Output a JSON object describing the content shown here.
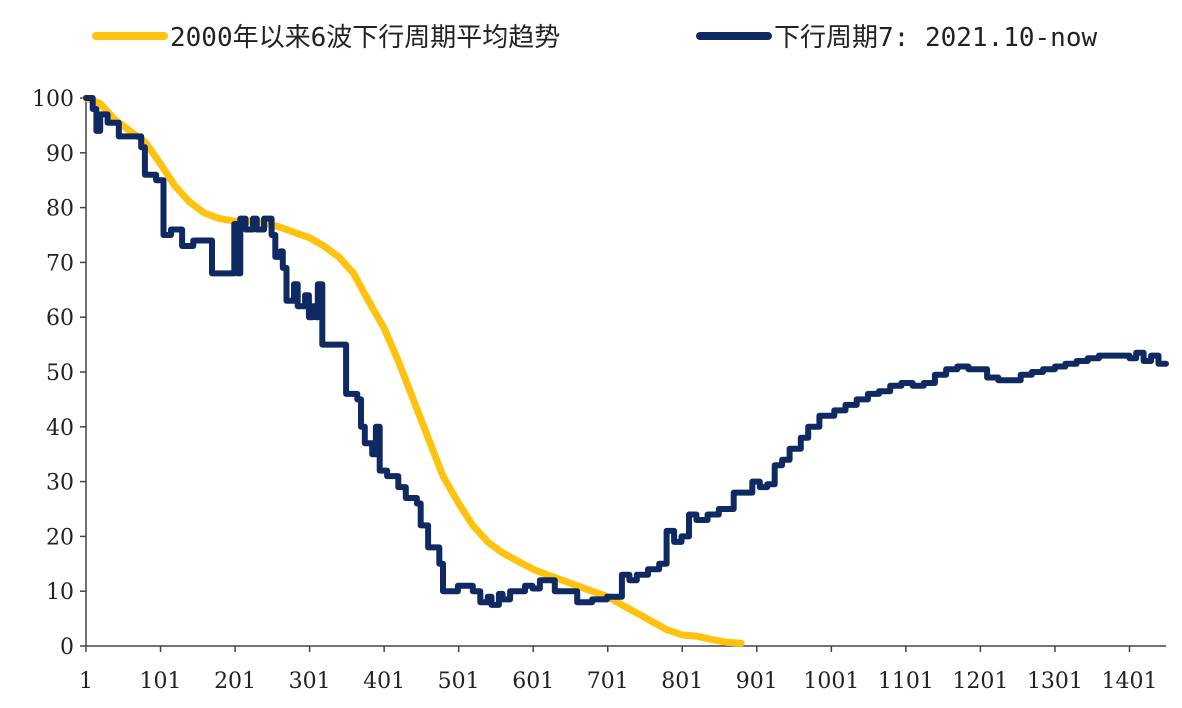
{
  "chart_data": {
    "type": "line",
    "title": "",
    "xlabel": "",
    "ylabel": "",
    "xlim": [
      1,
      1450
    ],
    "ylim": [
      0,
      100
    ],
    "x_ticks": [
      1,
      101,
      201,
      301,
      401,
      501,
      601,
      701,
      801,
      901,
      1001,
      1101,
      1201,
      1301,
      1401
    ],
    "x_tick_labels": [
      "1",
      "101",
      "201",
      "301",
      "401",
      "501",
      "601",
      "701",
      "801",
      "901",
      "1001",
      "1101",
      "1201",
      "1301",
      "1401"
    ],
    "y_ticks": [
      0,
      10,
      20,
      30,
      40,
      50,
      60,
      70,
      80,
      90,
      100
    ],
    "y_tick_labels": [
      "0",
      "10",
      "20",
      "30",
      "40",
      "50",
      "60",
      "70",
      "80",
      "90",
      "100"
    ],
    "grid": false,
    "legend_position": "top",
    "series": [
      {
        "name": "2000年以来6波下行周期平均趋势",
        "color": "#FFC20E",
        "step": false,
        "points": [
          [
            1,
            100
          ],
          [
            20,
            99
          ],
          [
            40,
            96
          ],
          [
            60,
            94
          ],
          [
            80,
            92
          ],
          [
            101,
            88
          ],
          [
            120,
            84
          ],
          [
            140,
            81
          ],
          [
            160,
            79
          ],
          [
            180,
            78
          ],
          [
            201,
            77.5
          ],
          [
            230,
            77.5
          ],
          [
            260,
            76.5
          ],
          [
            280,
            75.5
          ],
          [
            301,
            74.5
          ],
          [
            320,
            73
          ],
          [
            340,
            71
          ],
          [
            360,
            68
          ],
          [
            380,
            63
          ],
          [
            401,
            58
          ],
          [
            420,
            52
          ],
          [
            440,
            45
          ],
          [
            460,
            38
          ],
          [
            480,
            31
          ],
          [
            501,
            26
          ],
          [
            520,
            22
          ],
          [
            540,
            19
          ],
          [
            560,
            17
          ],
          [
            580,
            15.5
          ],
          [
            601,
            14
          ],
          [
            620,
            13
          ],
          [
            640,
            12
          ],
          [
            660,
            11
          ],
          [
            680,
            10
          ],
          [
            701,
            9
          ],
          [
            720,
            7.5
          ],
          [
            740,
            6
          ],
          [
            760,
            4.5
          ],
          [
            780,
            3
          ],
          [
            801,
            2
          ],
          [
            820,
            1.8
          ],
          [
            840,
            1.2
          ],
          [
            860,
            0.7
          ],
          [
            880,
            0.5
          ]
        ]
      },
      {
        "name": "下行周期7: 2021.10-now",
        "color": "#0F2A63",
        "step": true,
        "points": [
          [
            1,
            100
          ],
          [
            10,
            98
          ],
          [
            15,
            94
          ],
          [
            20,
            97
          ],
          [
            30,
            95.5
          ],
          [
            45,
            93
          ],
          [
            60,
            93
          ],
          [
            75,
            91
          ],
          [
            80,
            86
          ],
          [
            95,
            85
          ],
          [
            101,
            85
          ],
          [
            105,
            75
          ],
          [
            115,
            76
          ],
          [
            125,
            76
          ],
          [
            130,
            73
          ],
          [
            145,
            74
          ],
          [
            160,
            74
          ],
          [
            170,
            68
          ],
          [
            195,
            68
          ],
          [
            200,
            77
          ],
          [
            205,
            68
          ],
          [
            208,
            78
          ],
          [
            215,
            76
          ],
          [
            225,
            78
          ],
          [
            230,
            76
          ],
          [
            240,
            78
          ],
          [
            250,
            75
          ],
          [
            255,
            71
          ],
          [
            262,
            72
          ],
          [
            265,
            69
          ],
          [
            270,
            63
          ],
          [
            280,
            66
          ],
          [
            285,
            62
          ],
          [
            295,
            64
          ],
          [
            300,
            60
          ],
          [
            305,
            62
          ],
          [
            310,
            60
          ],
          [
            312,
            66
          ],
          [
            318,
            55
          ],
          [
            330,
            55
          ],
          [
            345,
            55
          ],
          [
            350,
            46
          ],
          [
            365,
            45
          ],
          [
            370,
            40
          ],
          [
            375,
            37
          ],
          [
            385,
            35
          ],
          [
            390,
            40
          ],
          [
            395,
            32
          ],
          [
            405,
            31
          ],
          [
            420,
            29
          ],
          [
            430,
            27
          ],
          [
            445,
            26
          ],
          [
            450,
            22
          ],
          [
            460,
            18
          ],
          [
            475,
            15
          ],
          [
            480,
            10
          ],
          [
            490,
            10
          ],
          [
            500,
            11
          ],
          [
            520,
            10
          ],
          [
            530,
            8
          ],
          [
            540,
            9
          ],
          [
            545,
            7.5
          ],
          [
            555,
            9.5
          ],
          [
            560,
            8.5
          ],
          [
            570,
            10
          ],
          [
            590,
            11
          ],
          [
            600,
            10.5
          ],
          [
            610,
            12
          ],
          [
            630,
            10
          ],
          [
            645,
            10
          ],
          [
            660,
            8
          ],
          [
            680,
            8.5
          ],
          [
            700,
            9
          ],
          [
            715,
            9
          ],
          [
            720,
            13
          ],
          [
            730,
            12
          ],
          [
            740,
            13
          ],
          [
            755,
            14
          ],
          [
            770,
            15
          ],
          [
            780,
            21
          ],
          [
            790,
            19
          ],
          [
            800,
            20
          ],
          [
            810,
            24
          ],
          [
            820,
            23
          ],
          [
            835,
            24
          ],
          [
            850,
            25
          ],
          [
            870,
            28
          ],
          [
            885,
            28
          ],
          [
            895,
            30
          ],
          [
            905,
            29
          ],
          [
            915,
            29.5
          ],
          [
            925,
            33
          ],
          [
            935,
            34
          ],
          [
            945,
            36
          ],
          [
            960,
            38
          ],
          [
            970,
            40
          ],
          [
            985,
            42
          ],
          [
            995,
            42
          ],
          [
            1005,
            43
          ],
          [
            1020,
            44
          ],
          [
            1035,
            45
          ],
          [
            1050,
            46
          ],
          [
            1065,
            46.5
          ],
          [
            1080,
            47.5
          ],
          [
            1095,
            48
          ],
          [
            1110,
            47.5
          ],
          [
            1125,
            48
          ],
          [
            1140,
            49.5
          ],
          [
            1155,
            50.5
          ],
          [
            1170,
            51
          ],
          [
            1185,
            50.5
          ],
          [
            1201,
            50.5
          ],
          [
            1210,
            49
          ],
          [
            1225,
            48.5
          ],
          [
            1240,
            48.5
          ],
          [
            1255,
            49.5
          ],
          [
            1270,
            50
          ],
          [
            1285,
            50.5
          ],
          [
            1301,
            51
          ],
          [
            1315,
            51.5
          ],
          [
            1330,
            52
          ],
          [
            1345,
            52.5
          ],
          [
            1360,
            53
          ],
          [
            1375,
            53
          ],
          [
            1390,
            53
          ],
          [
            1401,
            52.5
          ],
          [
            1410,
            53.5
          ],
          [
            1420,
            52
          ],
          [
            1430,
            53
          ],
          [
            1440,
            51.5
          ],
          [
            1450,
            51.5
          ]
        ]
      }
    ]
  }
}
